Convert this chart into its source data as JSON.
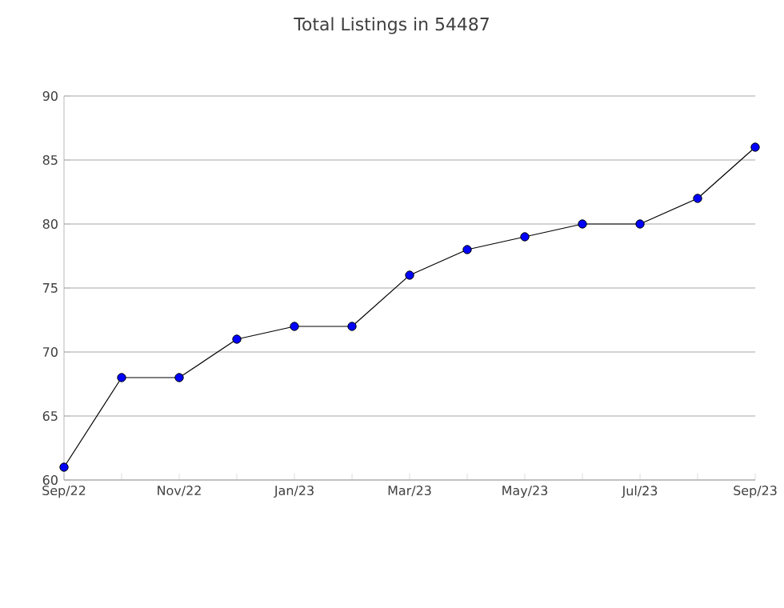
{
  "chart_data": {
    "type": "line",
    "title": "Total Listings in 54487",
    "categories": [
      "Sep/22",
      null,
      "Nov/22",
      null,
      "Jan/23",
      null,
      "Mar/23",
      null,
      "May/23",
      null,
      "Jul/23",
      null,
      "Sep/23"
    ],
    "series": [
      {
        "color": "#0000ff",
        "values": [
          61,
          68,
          68,
          71,
          72,
          72,
          76,
          78,
          79,
          80,
          80,
          82,
          86
        ]
      }
    ],
    "ylim": [
      60,
      90
    ],
    "yticks": [
      60,
      65,
      70,
      75,
      80,
      85,
      90
    ],
    "grid": "y",
    "marker": "circle",
    "line_style": "solid"
  }
}
